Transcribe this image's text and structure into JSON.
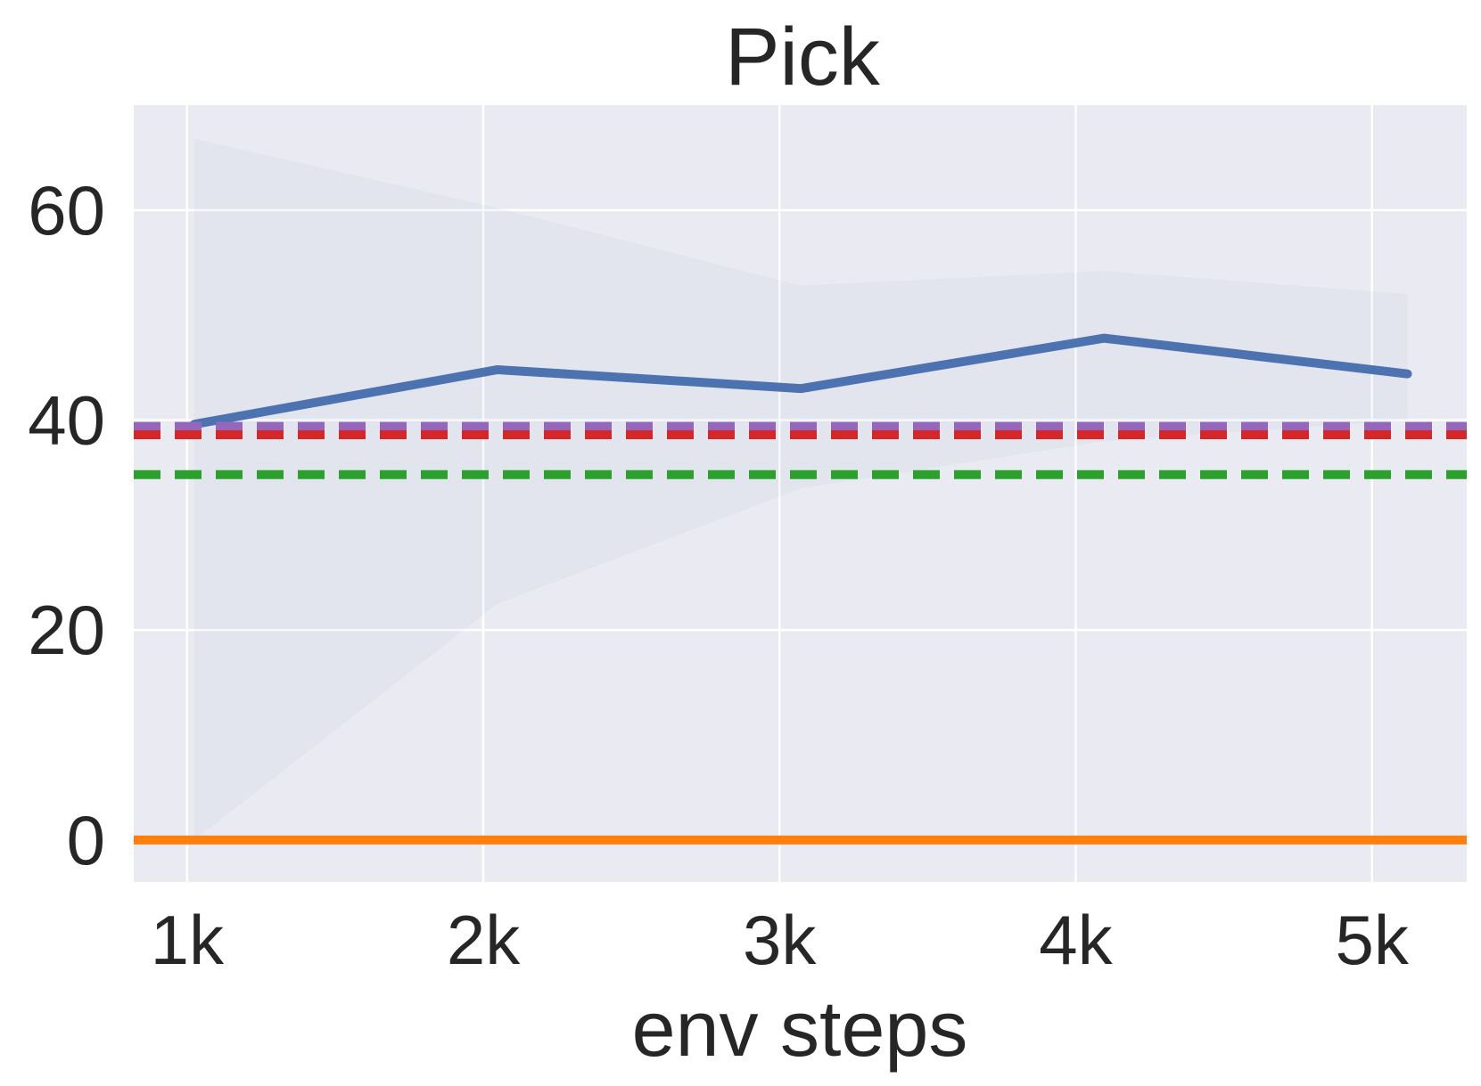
{
  "chart_data": {
    "type": "line",
    "title": "Pick",
    "xlabel": "env steps",
    "ylabel": "",
    "xlim": [
      820,
      5320
    ],
    "ylim": [
      -4,
      70
    ],
    "x_ticks": [
      {
        "value": 1000,
        "label": "1k"
      },
      {
        "value": 2000,
        "label": "2k"
      },
      {
        "value": 3000,
        "label": "3k"
      },
      {
        "value": 4000,
        "label": "4k"
      },
      {
        "value": 5000,
        "label": "5k"
      }
    ],
    "y_ticks": [
      {
        "value": 0,
        "label": "0"
      },
      {
        "value": 20,
        "label": "20"
      },
      {
        "value": 40,
        "label": "40"
      },
      {
        "value": 60,
        "label": "60"
      }
    ],
    "grid": true,
    "series": [
      {
        "color": "#4c72b0",
        "style": "solid",
        "x": [
          1024,
          2048,
          3072,
          4096,
          5120
        ],
        "y": [
          39.6,
          44.8,
          43.0,
          47.8,
          44.4
        ],
        "band_upper": [
          66.8,
          60.2,
          52.8,
          54.2,
          52.0
        ],
        "band_lower": [
          0.0,
          22.5,
          33.5,
          38.0,
          40.0
        ]
      },
      {
        "color": "#ff7f0e",
        "style": "solid",
        "constant": 0.0
      },
      {
        "color": "#9467bd",
        "style": "dashed",
        "constant": 39.4
      },
      {
        "color": "#d62728",
        "style": "dashed",
        "constant": 38.6
      },
      {
        "color": "#2ca02c",
        "style": "dashed",
        "constant": 34.8
      }
    ]
  }
}
